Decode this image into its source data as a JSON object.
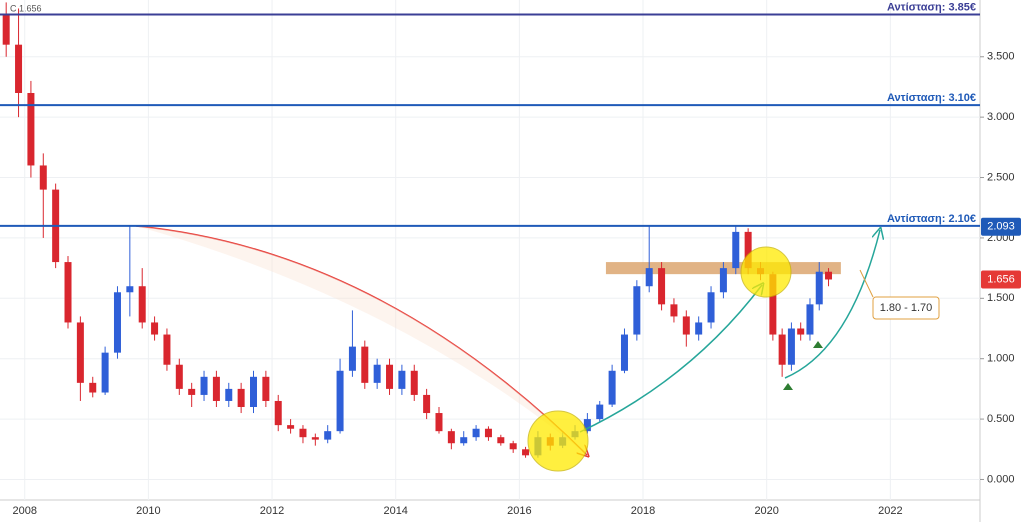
{
  "chart_data": {
    "type": "candlestick",
    "header": "C 1.656",
    "up_color": "#2f5fd8",
    "down_color": "#d9262e",
    "xlim": [
      2007.6,
      2023.45
    ],
    "ylim": [
      -0.17,
      3.97
    ],
    "xticks": [
      2008,
      2010,
      2012,
      2014,
      2016,
      2018,
      2020,
      2022
    ],
    "yticks": [
      {
        "value": 0,
        "label": "0.000"
      },
      {
        "value": 0.5,
        "label": "0.500"
      },
      {
        "value": 1,
        "label": "1.000"
      },
      {
        "value": 1.5,
        "label": "1.500"
      },
      {
        "value": 2,
        "label": "2.000"
      },
      {
        "value": 2.5,
        "label": "2.500"
      },
      {
        "value": 3,
        "label": "3.000"
      },
      {
        "value": 3.5,
        "label": "3.500"
      }
    ],
    "levels": [
      {
        "value": 3.85,
        "label": "Αντίσταση: 3.85€",
        "color": "#3b3f96"
      },
      {
        "value": 3.1,
        "label": "Αντίσταση: 3.10€",
        "color": "#1f5ab8"
      },
      {
        "value": 2.1,
        "label": "Αντίσταση: 2.10€",
        "color": "#1f5ab8"
      }
    ],
    "zone": {
      "low": 1.7,
      "high": 1.8,
      "from": 2017.4,
      "to": 2021.2,
      "label": "1.80 - 1.70"
    },
    "price_badges": [
      {
        "value": 2.093,
        "color": "#1f5ab8"
      },
      {
        "value": 1.656,
        "color": "#e53935"
      }
    ],
    "candles": [
      [
        2007.7,
        3.85,
        3.95,
        3.5,
        3.6
      ],
      [
        2007.9,
        3.6,
        3.9,
        3.0,
        3.2
      ],
      [
        2008.1,
        3.2,
        3.3,
        2.5,
        2.6
      ],
      [
        2008.3,
        2.6,
        2.7,
        2.0,
        2.4
      ],
      [
        2008.5,
        2.4,
        2.45,
        1.75,
        1.8
      ],
      [
        2008.7,
        1.8,
        1.85,
        1.25,
        1.3
      ],
      [
        2008.9,
        1.3,
        1.35,
        0.65,
        0.8
      ],
      [
        2009.1,
        0.8,
        0.85,
        0.68,
        0.72
      ],
      [
        2009.3,
        0.72,
        1.1,
        0.7,
        1.05
      ],
      [
        2009.5,
        1.05,
        1.6,
        1.0,
        1.55
      ],
      [
        2009.7,
        1.55,
        2.1,
        1.35,
        1.6
      ],
      [
        2009.9,
        1.6,
        1.75,
        1.25,
        1.3
      ],
      [
        2010.1,
        1.3,
        1.35,
        1.15,
        1.2
      ],
      [
        2010.3,
        1.2,
        1.25,
        0.9,
        0.95
      ],
      [
        2010.5,
        0.95,
        1.0,
        0.7,
        0.75
      ],
      [
        2010.7,
        0.75,
        0.8,
        0.6,
        0.7
      ],
      [
        2010.9,
        0.7,
        0.9,
        0.65,
        0.85
      ],
      [
        2011.1,
        0.85,
        0.9,
        0.6,
        0.65
      ],
      [
        2011.3,
        0.65,
        0.8,
        0.6,
        0.75
      ],
      [
        2011.5,
        0.75,
        0.8,
        0.55,
        0.6
      ],
      [
        2011.7,
        0.6,
        0.9,
        0.55,
        0.85
      ],
      [
        2011.9,
        0.85,
        0.9,
        0.6,
        0.65
      ],
      [
        2012.1,
        0.65,
        0.7,
        0.4,
        0.45
      ],
      [
        2012.3,
        0.45,
        0.5,
        0.38,
        0.42
      ],
      [
        2012.5,
        0.42,
        0.45,
        0.3,
        0.35
      ],
      [
        2012.7,
        0.35,
        0.38,
        0.28,
        0.33
      ],
      [
        2012.9,
        0.33,
        0.45,
        0.3,
        0.4
      ],
      [
        2013.1,
        0.4,
        1.0,
        0.38,
        0.9
      ],
      [
        2013.3,
        0.9,
        1.4,
        0.85,
        1.1
      ],
      [
        2013.5,
        1.1,
        1.15,
        0.75,
        0.8
      ],
      [
        2013.7,
        0.8,
        1.0,
        0.75,
        0.95
      ],
      [
        2013.9,
        0.95,
        1.0,
        0.7,
        0.75
      ],
      [
        2014.1,
        0.75,
        0.95,
        0.7,
        0.9
      ],
      [
        2014.3,
        0.9,
        0.95,
        0.65,
        0.7
      ],
      [
        2014.5,
        0.7,
        0.75,
        0.5,
        0.55
      ],
      [
        2014.7,
        0.55,
        0.6,
        0.38,
        0.4
      ],
      [
        2014.9,
        0.4,
        0.42,
        0.25,
        0.3
      ],
      [
        2015.1,
        0.3,
        0.4,
        0.28,
        0.35
      ],
      [
        2015.3,
        0.35,
        0.45,
        0.32,
        0.42
      ],
      [
        2015.5,
        0.42,
        0.44,
        0.32,
        0.35
      ],
      [
        2015.7,
        0.35,
        0.37,
        0.28,
        0.3
      ],
      [
        2015.9,
        0.3,
        0.32,
        0.22,
        0.25
      ],
      [
        2016.1,
        0.25,
        0.27,
        0.18,
        0.2
      ],
      [
        2016.3,
        0.2,
        0.4,
        0.18,
        0.35
      ],
      [
        2016.5,
        0.35,
        0.38,
        0.24,
        0.28
      ],
      [
        2016.7,
        0.28,
        0.4,
        0.26,
        0.35
      ],
      [
        2016.9,
        0.35,
        0.45,
        0.33,
        0.4
      ],
      [
        2017.1,
        0.4,
        0.55,
        0.38,
        0.5
      ],
      [
        2017.3,
        0.5,
        0.65,
        0.48,
        0.62
      ],
      [
        2017.5,
        0.62,
        0.95,
        0.6,
        0.9
      ],
      [
        2017.7,
        0.9,
        1.25,
        0.88,
        1.2
      ],
      [
        2017.9,
        1.2,
        1.65,
        1.15,
        1.6
      ],
      [
        2018.1,
        1.6,
        2.1,
        1.55,
        1.75
      ],
      [
        2018.3,
        1.75,
        1.8,
        1.4,
        1.45
      ],
      [
        2018.5,
        1.45,
        1.5,
        1.3,
        1.35
      ],
      [
        2018.7,
        1.35,
        1.4,
        1.1,
        1.2
      ],
      [
        2018.9,
        1.2,
        1.35,
        1.15,
        1.3
      ],
      [
        2019.1,
        1.3,
        1.6,
        1.25,
        1.55
      ],
      [
        2019.3,
        1.55,
        1.8,
        1.5,
        1.75
      ],
      [
        2019.5,
        1.75,
        2.1,
        1.7,
        2.05
      ],
      [
        2019.7,
        2.05,
        2.08,
        1.7,
        1.75
      ],
      [
        2019.9,
        1.75,
        1.8,
        1.65,
        1.7
      ],
      [
        2020.1,
        1.7,
        1.72,
        1.15,
        1.2
      ],
      [
        2020.25,
        1.2,
        1.25,
        0.85,
        0.95
      ],
      [
        2020.4,
        0.95,
        1.3,
        0.9,
        1.25
      ],
      [
        2020.55,
        1.25,
        1.3,
        1.15,
        1.2
      ],
      [
        2020.7,
        1.2,
        1.5,
        1.15,
        1.45
      ],
      [
        2020.85,
        1.45,
        1.8,
        1.4,
        1.72
      ],
      [
        2021.0,
        1.72,
        1.75,
        1.6,
        1.656
      ]
    ]
  }
}
